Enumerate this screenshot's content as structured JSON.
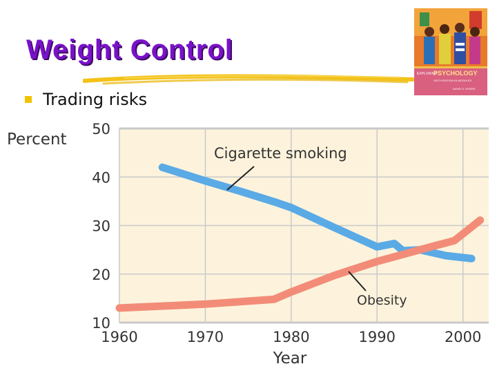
{
  "slide": {
    "title": "Weight Control",
    "bullet": "Trading risks"
  },
  "book": {
    "text_1": "EXPLORING",
    "text_2": "PSYCHOLOGY",
    "text_3": "SIXTH EDITION IN MODULES",
    "text_4": "DAVID G. MYERS"
  },
  "colors": {
    "title": "#7a12c9",
    "bullet": "#f2c200",
    "plot_background": "#fdf3dc",
    "gridline": "#c9c9c9",
    "smoking_line": "#5aaae6",
    "obesity_line": "#f28c78"
  },
  "chart_data": {
    "type": "line",
    "x": [],
    "xlabel": "Year",
    "ylabel": "Percent",
    "xlim": [
      1960,
      2003
    ],
    "ylim": [
      10,
      50
    ],
    "xticks": [
      "1960",
      "1970",
      "1980",
      "1990",
      "2000"
    ],
    "yticks": [
      "10",
      "20",
      "30",
      "40",
      "50"
    ],
    "grid": true,
    "series": [
      {
        "name": "Cigarette smoking",
        "x": [
          1965,
          1970,
          1974,
          1978,
          1980,
          1985,
          1990,
          1992,
          1993,
          1995,
          1998,
          2001
        ],
        "values": [
          42,
          39.2,
          37.1,
          34.9,
          33.7,
          29.6,
          25.6,
          26.3,
          24.8,
          25,
          23.8,
          23.2
        ]
      },
      {
        "name": "Obesity",
        "x": [
          1960,
          1970,
          1978,
          1980,
          1985,
          1990,
          1995,
          1999,
          2002
        ],
        "values": [
          13,
          13.8,
          14.8,
          16.3,
          19.7,
          22.6,
          25,
          26.9,
          31.1
        ]
      }
    ],
    "annotations": [
      {
        "text": "Cigarette smoking",
        "series": "Cigarette smoking"
      },
      {
        "text": "Obesity",
        "series": "Obesity"
      }
    ]
  }
}
